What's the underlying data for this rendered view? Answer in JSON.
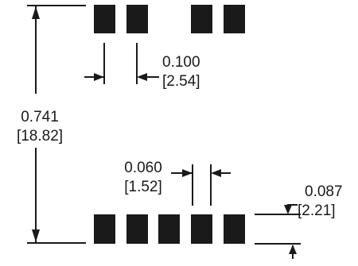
{
  "dimensions": {
    "overall_height": {
      "inch": "0.741",
      "mm": "[18.82]"
    },
    "top_pitch": {
      "inch": "0.100",
      "mm": "[2.54]"
    },
    "bottom_pad_width": {
      "inch": "0.060",
      "mm": "[1.52]"
    },
    "bottom_pad_height": {
      "inch": "0.087",
      "mm": "[2.21]"
    }
  },
  "colors": {
    "ink": "#1a1a1a",
    "background": "#ffffff"
  }
}
